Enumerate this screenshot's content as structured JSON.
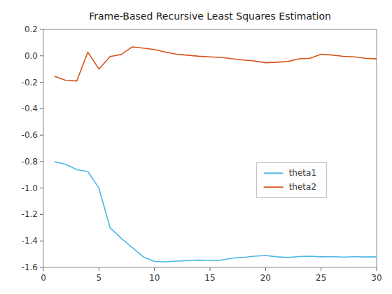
{
  "chart_data": {
    "type": "line",
    "title": "Frame-Based Recursive Least Squares Estimation",
    "x": [
      1,
      2,
      3,
      4,
      5,
      6,
      7,
      8,
      9,
      10,
      11,
      12,
      13,
      14,
      15,
      16,
      17,
      18,
      19,
      20,
      21,
      22,
      23,
      24,
      25,
      26,
      27,
      28,
      29,
      30
    ],
    "series": [
      {
        "name": "theta1",
        "color": "#4db8e8",
        "values": [
          -0.8,
          -0.82,
          -0.86,
          -0.875,
          -1.0,
          -1.3,
          -1.38,
          -1.45,
          -1.52,
          -1.555,
          -1.558,
          -1.552,
          -1.548,
          -1.545,
          -1.548,
          -1.545,
          -1.53,
          -1.525,
          -1.515,
          -1.51,
          -1.52,
          -1.525,
          -1.518,
          -1.515,
          -1.52,
          -1.518,
          -1.522,
          -1.519,
          -1.521,
          -1.52
        ]
      },
      {
        "name": "theta2",
        "color": "#d95319",
        "values": [
          -0.155,
          -0.185,
          -0.19,
          0.028,
          -0.1,
          -0.005,
          0.01,
          0.068,
          0.058,
          0.048,
          0.028,
          0.012,
          0.005,
          -0.003,
          -0.008,
          -0.012,
          -0.022,
          -0.032,
          -0.038,
          -0.052,
          -0.048,
          -0.043,
          -0.022,
          -0.018,
          0.012,
          0.006,
          -0.004,
          -0.008,
          -0.018,
          -0.023
        ]
      }
    ],
    "xlim": [
      0,
      30
    ],
    "ylim": [
      -1.6,
      0.2
    ],
    "xticks": [
      0,
      5,
      10,
      15,
      20,
      25,
      30
    ],
    "yticks": [
      -1.6,
      -1.4,
      -1.2,
      {
        "value": -1.0,
        "label": "-1.0"
      },
      -0.8,
      -0.6,
      -0.4,
      -0.2,
      {
        "value": 0.0,
        "label": "0.0"
      },
      0.2
    ],
    "grid": false,
    "legend": "right"
  }
}
